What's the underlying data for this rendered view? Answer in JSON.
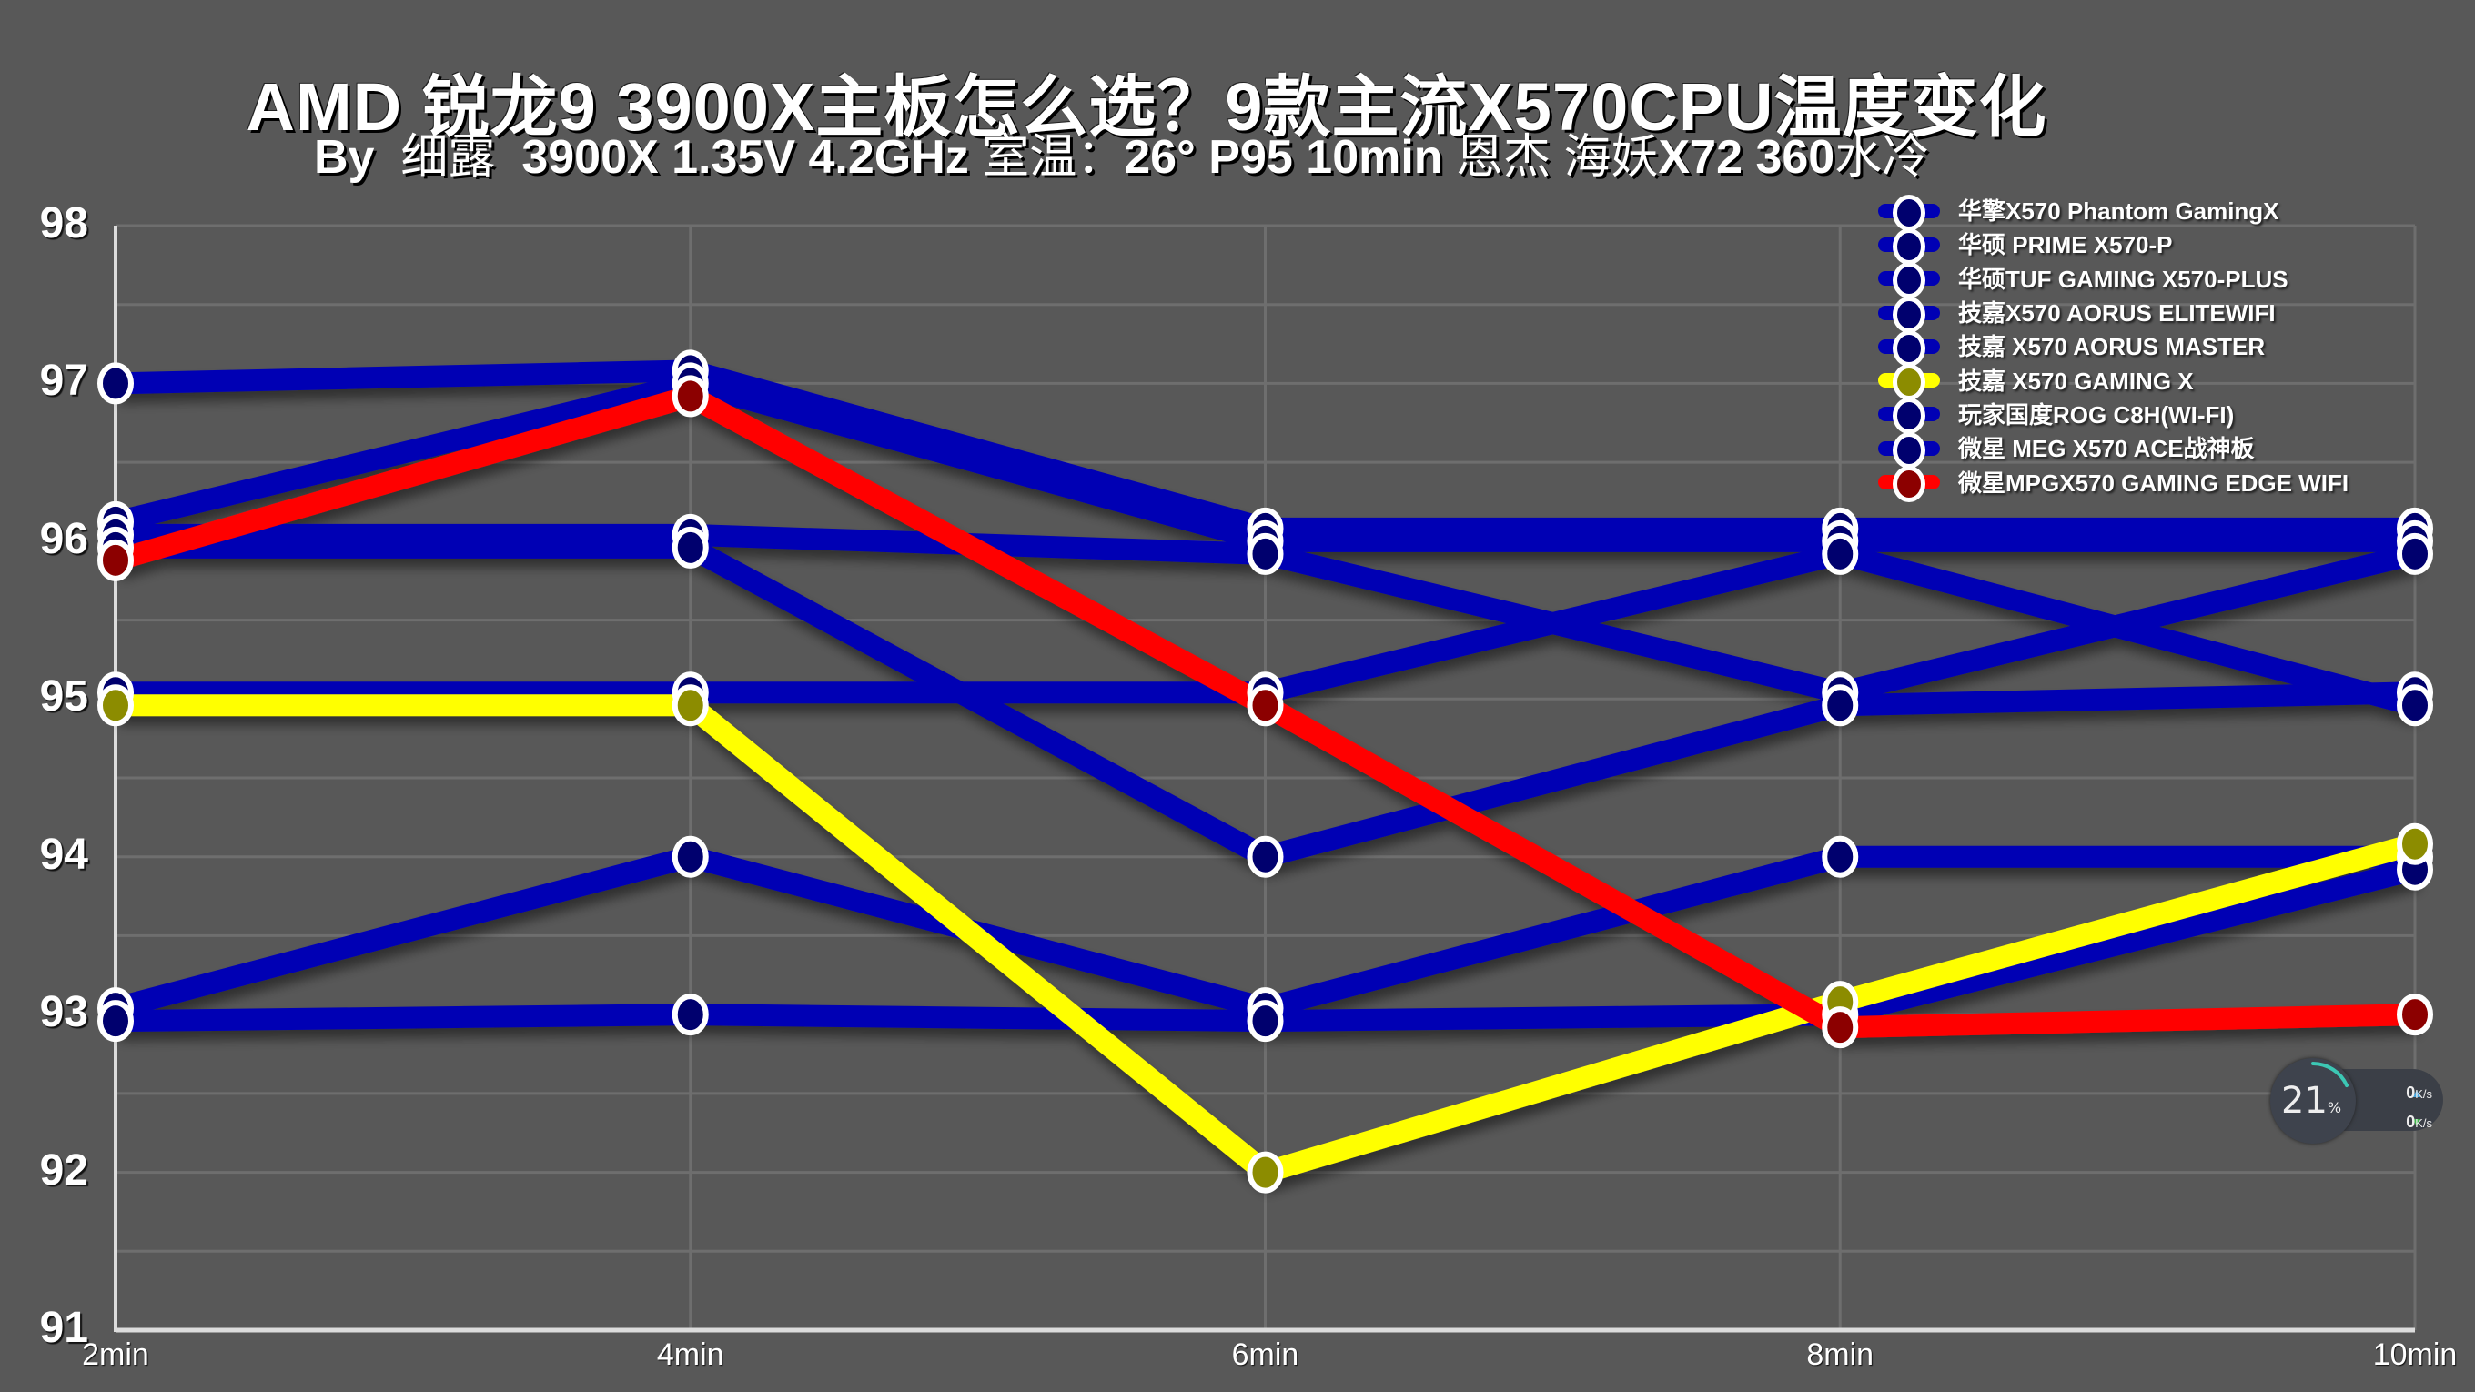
{
  "header": {
    "title": "AMD 锐龙9 3900X主板怎么选？9款主流X570CPU温度变化",
    "subtitle_by": "By",
    "subtitle_author": "细露",
    "subtitle_cpu": "3900X 1.35V 4.2GHz",
    "subtitle_room_label": "室温：",
    "subtitle_room_value": "26° P95 10min",
    "subtitle_cooler_brand": "恩杰 海妖",
    "subtitle_cooler_model": "X72 360",
    "subtitle_cooler_type": "水冷"
  },
  "legend": [
    {
      "label": "华擎X570 Phantom GamingX",
      "line": "#0000b4",
      "fill": "#00006e"
    },
    {
      "label": "华硕 PRIME X570-P",
      "line": "#0000b4",
      "fill": "#00006e"
    },
    {
      "label": "华硕TUF GAMING X570-PLUS",
      "line": "#0000b4",
      "fill": "#00006e"
    },
    {
      "label": "技嘉X570 AORUS ELITEWIFI",
      "line": "#0000b4",
      "fill": "#00006e"
    },
    {
      "label": "技嘉 X570 AORUS MASTER",
      "line": "#0000b4",
      "fill": "#00006e"
    },
    {
      "label": "技嘉 X570 GAMING X",
      "line": "#ffff00",
      "fill": "#8c8c00"
    },
    {
      "label": "玩家国度ROG C8H(WI-FI)",
      "line": "#0000b4",
      "fill": "#00006e"
    },
    {
      "label": "微星 MEG X570 ACE战神板",
      "line": "#0000b4",
      "fill": "#00006e"
    },
    {
      "label": "微星MPGX570 GAMING EDGE WIFI",
      "line": "#ff0000",
      "fill": "#8c0000"
    }
  ],
  "axes": {
    "y_ticks": [
      "98",
      "97",
      "96",
      "95",
      "94",
      "93",
      "92",
      "91"
    ],
    "x_ticks": [
      "2min",
      "4min",
      "6min",
      "8min",
      "10min"
    ]
  },
  "widget": {
    "cpu_percent": "21",
    "percent_sign": "%",
    "upload_value": "0",
    "download_value": "0",
    "unit": "K/s",
    "accent": "#3cc7b4"
  },
  "chart_data": {
    "type": "line",
    "title": "AMD 锐龙9 3900X主板怎么选？9款主流X570CPU温度变化",
    "subtitle": "By 细露 3900X 1.35V 4.2GHz 室温：26° P95 10min 恩杰 海妖X72 360水冷",
    "xlabel": "",
    "ylabel": "",
    "x": [
      "2min",
      "4min",
      "6min",
      "8min",
      "10min"
    ],
    "ylim": [
      91,
      98
    ],
    "grid": true,
    "legend_position": "upper right",
    "series": [
      {
        "name": "华擎X570 Phantom GamingX",
        "color": "#0000b4",
        "values": [
          97,
          97,
          96,
          96,
          96
        ]
      },
      {
        "name": "华硕 PRIME X570-P",
        "color": "#0000b4",
        "values": [
          96,
          97,
          96,
          96,
          96
        ]
      },
      {
        "name": "华硕TUF GAMING X570-PLUS",
        "color": "#0000b4",
        "values": [
          96,
          96,
          96,
          95,
          96
        ]
      },
      {
        "name": "技嘉X570 AORUS ELITEWIFI",
        "color": "#0000b4",
        "values": [
          96,
          96,
          94,
          95,
          95
        ]
      },
      {
        "name": "技嘉 X570 AORUS MASTER",
        "color": "#0000b4",
        "values": [
          95,
          95,
          95,
          96,
          95
        ]
      },
      {
        "name": "技嘉 X570 GAMING X",
        "color": "#ffff00",
        "values": [
          95,
          95,
          92,
          93,
          94
        ]
      },
      {
        "name": "玩家国度ROG C8H(WI-FI)",
        "color": "#0000b4",
        "values": [
          93,
          94,
          93,
          94,
          94
        ]
      },
      {
        "name": "微星 MEG X570 ACE战神板",
        "color": "#0000b4",
        "values": [
          93,
          93,
          93,
          93,
          94
        ]
      },
      {
        "name": "微星MPGX570 GAMING EDGE WIFI",
        "color": "#ff0000",
        "values": [
          96,
          97,
          95,
          93,
          93
        ]
      }
    ]
  }
}
